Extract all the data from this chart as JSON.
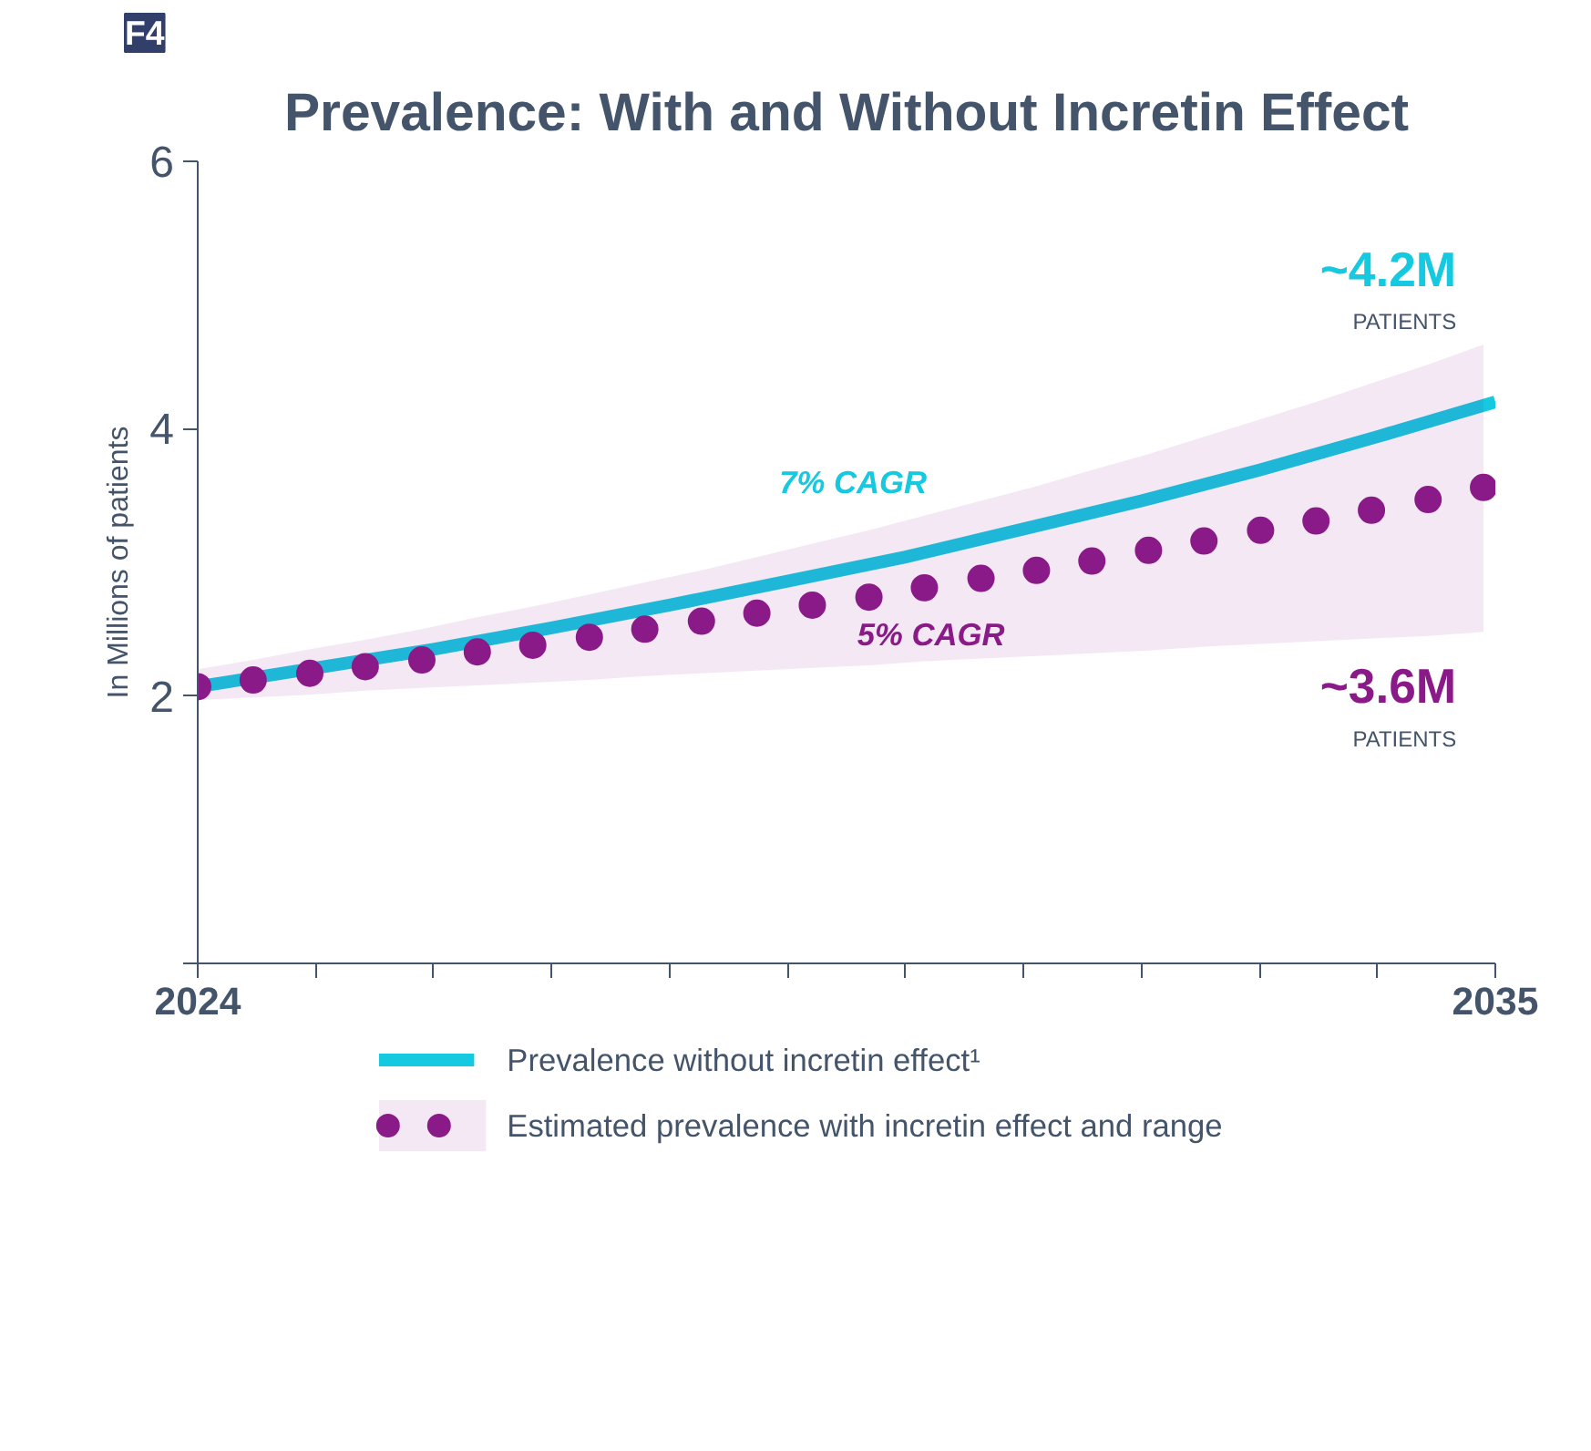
{
  "chart_data": {
    "type": "line",
    "title": "Prevalence: With and Without Incretin Effect",
    "ylabel": "In Millions of patients",
    "xlim": [
      2024,
      2035
    ],
    "ylim": [
      0,
      6
    ],
    "xticks": [
      {
        "value": 2024,
        "label": "2024"
      },
      {
        "value": 2025,
        "label": null
      },
      {
        "value": 2026,
        "label": null
      },
      {
        "value": 2027,
        "label": null
      },
      {
        "value": 2028,
        "label": null
      },
      {
        "value": 2029,
        "label": null
      },
      {
        "value": 2030,
        "label": null
      },
      {
        "value": 2031,
        "label": null
      },
      {
        "value": 2032,
        "label": null
      },
      {
        "value": 2033,
        "label": null
      },
      {
        "value": 2034,
        "label": null
      },
      {
        "value": 2035,
        "label": "2035"
      }
    ],
    "yticks": [
      {
        "value": 0,
        "label": null
      },
      2,
      4,
      6
    ],
    "grid": false,
    "legend": "bottom",
    "series": [
      {
        "name": "Prevalence without incretin effect¹",
        "color": "#14c9e0",
        "marker": "none",
        "line_style": "solid",
        "x": [
          2024,
          2025,
          2026,
          2027,
          2028,
          2029,
          2030,
          2031,
          2032,
          2033,
          2034,
          2035
        ],
        "values": [
          2.07,
          2.21,
          2.35,
          2.51,
          2.68,
          2.86,
          3.04,
          3.25,
          3.46,
          3.69,
          3.94,
          4.2
        ]
      },
      {
        "name": "Estimated prevalence with incretin effect and range",
        "type": "scatter",
        "color": "#8b1a89",
        "marker": "circle",
        "x": [
          2024,
          2024.47,
          2024.95,
          2025.42,
          2025.9,
          2026.37,
          2026.84,
          2027.32,
          2027.79,
          2028.27,
          2028.74,
          2029.21,
          2029.69,
          2030.16,
          2030.64,
          2031.11,
          2031.58,
          2032.06,
          2032.53,
          2033.01,
          2033.48,
          2033.95,
          2034.43,
          2034.9
        ],
        "values": [
          2.07,
          2.12,
          2.17,
          2.22,
          2.27,
          2.33,
          2.38,
          2.44,
          2.5,
          2.56,
          2.62,
          2.68,
          2.74,
          2.81,
          2.88,
          2.94,
          3.01,
          3.09,
          3.16,
          3.24,
          3.31,
          3.39,
          3.47,
          3.56
        ],
        "lower": [
          1.97,
          1.99,
          2.01,
          2.04,
          2.06,
          2.08,
          2.1,
          2.12,
          2.15,
          2.17,
          2.19,
          2.21,
          2.23,
          2.26,
          2.28,
          2.3,
          2.32,
          2.34,
          2.37,
          2.39,
          2.41,
          2.43,
          2.45,
          2.48
        ],
        "upper": [
          2.2,
          2.27,
          2.35,
          2.42,
          2.5,
          2.59,
          2.67,
          2.76,
          2.85,
          2.94,
          3.04,
          3.14,
          3.24,
          3.35,
          3.46,
          3.57,
          3.69,
          3.81,
          3.94,
          4.07,
          4.2,
          4.34,
          4.48,
          4.63
        ]
      }
    ],
    "annotations": [
      "F4",
      "7% CAGR",
      "5% CAGR",
      "~4.2M",
      "PATIENTS",
      "~3.6M",
      "PATIENTS"
    ]
  }
}
